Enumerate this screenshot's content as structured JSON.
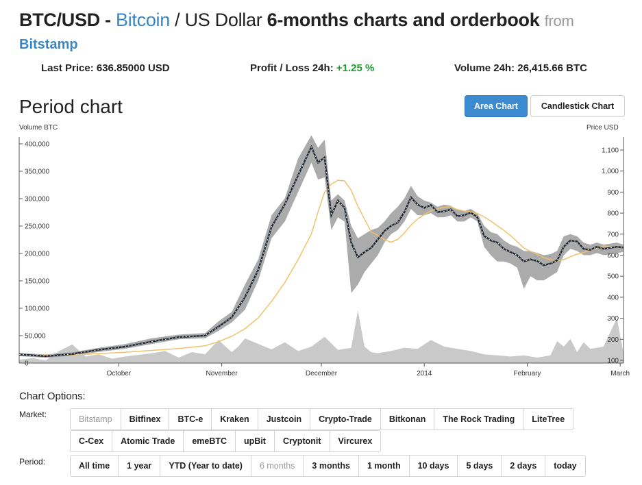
{
  "header": {
    "pair": "BTC/USD",
    "dash": " - ",
    "base_name": "Bitcoin",
    "quote_part": " / US Dollar ",
    "period_part": "6-months charts and orderbook",
    "from": "from",
    "exchange": "Bitstamp"
  },
  "stats": {
    "last_price_label": "Last Price:",
    "last_price_value": "636.85000 USD",
    "pl_label": "Profit / Loss 24h:",
    "pl_value": "+1.25 %",
    "volume_label": "Volume 24h:",
    "volume_value": "26,415.66 BTC"
  },
  "period_chart": {
    "title": "Period chart",
    "area_btn": "Area Chart",
    "candle_btn": "Candlestick Chart",
    "left_axis_title": "Volume BTC",
    "right_axis_title": "Price USD"
  },
  "colors": {
    "price_line": "#1c2430",
    "price_band": "#9c9c9c",
    "moving_avg": "#f0c26a",
    "volume_area": "#c9c9c9",
    "accent": "#3c8ad0",
    "positive": "#1e9e2d"
  },
  "chart_data": {
    "type": "area",
    "x_tick_labels": [
      "October",
      "November",
      "December",
      "2014",
      "February",
      "March"
    ],
    "volume_axis": {
      "ticks": [
        "0",
        "50,000",
        "100,000",
        "150,000",
        "200,000",
        "250,000",
        "300,000",
        "350,000",
        "400,000"
      ],
      "range": [
        0,
        400000
      ]
    },
    "price_axis": {
      "ticks": [
        "100",
        "200",
        "300",
        "400",
        "500",
        "600",
        "700",
        "800",
        "900",
        "1,000",
        "1,100"
      ],
      "range": [
        100,
        1100
      ]
    },
    "x_range": [
      0,
      182
    ],
    "price_series": {
      "x": [
        0,
        8,
        16,
        24,
        32,
        40,
        48,
        56,
        60,
        64,
        68,
        72,
        76,
        80,
        84,
        88,
        90,
        92,
        94,
        96,
        98,
        100,
        102,
        104,
        106,
        108,
        110,
        112,
        114,
        116,
        118,
        120,
        122,
        124,
        126,
        128,
        130,
        132,
        134,
        136,
        138,
        140,
        142,
        144,
        146,
        148,
        150,
        152,
        154,
        156,
        158,
        160,
        162,
        164,
        166,
        168,
        170,
        172,
        174,
        176,
        178,
        180,
        182
      ],
      "y": [
        128,
        120,
        130,
        150,
        165,
        190,
        210,
        218,
        260,
        305,
        400,
        530,
        735,
        842,
        980,
        1115,
        1040,
        1065,
        790,
        860,
        825,
        660,
        590,
        615,
        635,
        675,
        715,
        740,
        755,
        805,
        875,
        840,
        825,
        838,
        805,
        808,
        818,
        785,
        790,
        803,
        780,
        692,
        670,
        660,
        630,
        615,
        600,
        570,
        580,
        572,
        552,
        560,
        575,
        640,
        670,
        665,
        630,
        625,
        640,
        630,
        635,
        640,
        636
      ]
    },
    "price_band_high": [
      135,
      128,
      138,
      160,
      178,
      205,
      222,
      230,
      285,
      330,
      460,
      580,
      790,
      870,
      1060,
      1170,
      1110,
      1150,
      860,
      890,
      860,
      740,
      680,
      700,
      720,
      730,
      760,
      800,
      830,
      870,
      930,
      880,
      860,
      850,
      830,
      840,
      835,
      815,
      810,
      820,
      800,
      740,
      710,
      700,
      670,
      650,
      640,
      620,
      620,
      610,
      600,
      605,
      620,
      690,
      700,
      690,
      660,
      650,
      660,
      650,
      655,
      660,
      650
    ],
    "price_band_low": [
      120,
      112,
      122,
      140,
      155,
      178,
      200,
      205,
      240,
      280,
      340,
      480,
      680,
      760,
      900,
      1040,
      960,
      970,
      720,
      780,
      760,
      420,
      460,
      520,
      560,
      600,
      660,
      700,
      720,
      760,
      820,
      790,
      790,
      800,
      780,
      780,
      790,
      760,
      760,
      780,
      760,
      640,
      600,
      570,
      570,
      560,
      540,
      440,
      500,
      480,
      480,
      500,
      520,
      600,
      630,
      620,
      600,
      600,
      610,
      600,
      605,
      610,
      615
    ]
  }
}
